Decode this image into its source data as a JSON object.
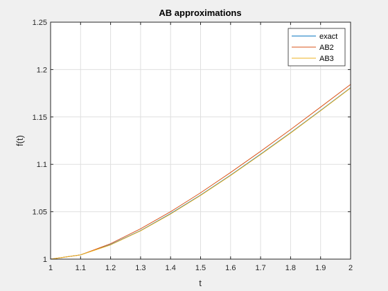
{
  "chart_data": {
    "type": "line",
    "title": "AB approximations",
    "xlabel": "t",
    "ylabel": "f(t)",
    "xlim": [
      1,
      2
    ],
    "ylim": [
      1,
      1.25
    ],
    "grid": true,
    "legend_position": "top-right",
    "xticks": [
      "1",
      "1.1",
      "1.2",
      "1.3",
      "1.4",
      "1.5",
      "1.6",
      "1.7",
      "1.8",
      "1.9",
      "2"
    ],
    "yticks": [
      "1",
      "1.05",
      "1.1",
      "1.15",
      "1.2",
      "1.25"
    ],
    "x": [
      1.0,
      1.1,
      1.2,
      1.3,
      1.4,
      1.5,
      1.6,
      1.7,
      1.8,
      1.9,
      2.0
    ],
    "series": [
      {
        "name": "exact",
        "color": "#0072bd",
        "values": [
          1.0,
          1.0045,
          1.0154,
          1.0301,
          1.048,
          1.0676,
          1.0886,
          1.1107,
          1.1334,
          1.1569,
          1.1808
        ]
      },
      {
        "name": "AB2",
        "color": "#d95319",
        "values": [
          1.0,
          1.0045,
          1.0163,
          1.032,
          1.05,
          1.07,
          1.0914,
          1.1137,
          1.1367,
          1.1604,
          1.1843
        ]
      },
      {
        "name": "AB3",
        "color": "#edb120",
        "values": [
          1.0,
          1.0045,
          1.015,
          1.0298,
          1.0476,
          1.0672,
          1.0882,
          1.1103,
          1.133,
          1.1565,
          1.1805
        ]
      }
    ]
  }
}
